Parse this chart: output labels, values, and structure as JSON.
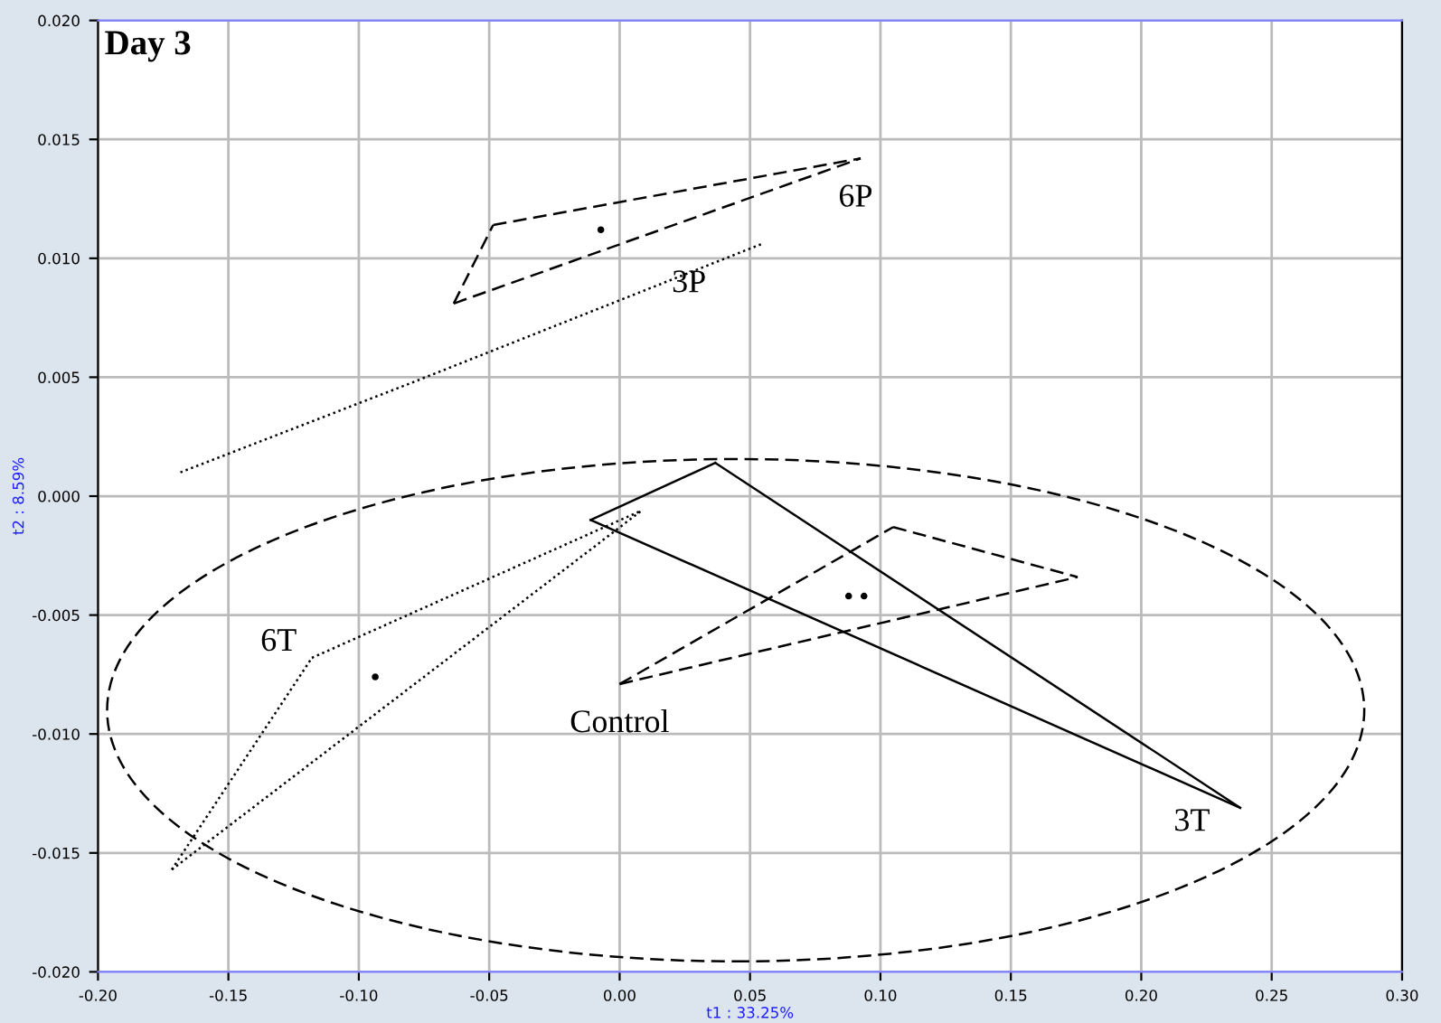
{
  "chart_data": {
    "type": "line",
    "title": "Day 3",
    "xlabel": "t1 : 33.25%",
    "ylabel": "t2 : 8.59%",
    "xlim": [
      -0.2,
      0.3
    ],
    "ylim": [
      -0.02,
      0.02
    ],
    "xticks": [
      {
        "value": -0.2,
        "label": "-0.20"
      },
      {
        "value": -0.15,
        "label": "-0.15"
      },
      {
        "value": -0.1,
        "label": "-0.10"
      },
      {
        "value": -0.05,
        "label": "-0.05"
      },
      {
        "value": 0,
        "label": "0.00"
      },
      {
        "value": 0.05,
        "label": "0.05"
      },
      {
        "value": 0.1,
        "label": "0.10"
      },
      {
        "value": 0.15,
        "label": "0.15"
      },
      {
        "value": 0.2,
        "label": "0.20"
      },
      {
        "value": 0.25,
        "label": "0.25"
      },
      {
        "value": 0.3,
        "label": "0.30"
      }
    ],
    "yticks": [
      {
        "value": -0.02,
        "label": "-0.020"
      },
      {
        "value": -0.015,
        "label": "-0.015"
      },
      {
        "value": -0.01,
        "label": "-0.010"
      },
      {
        "value": -0.005,
        "label": "-0.005"
      },
      {
        "value": 0,
        "label": "0.000"
      },
      {
        "value": 0.005,
        "label": "0.005"
      },
      {
        "value": 0.01,
        "label": "0.010"
      },
      {
        "value": 0.015,
        "label": "0.015"
      },
      {
        "value": 0.02,
        "label": "0.020"
      }
    ],
    "grid": true,
    "marker": "none",
    "series": [
      {
        "color": "#000000",
        "line_style": "dashed",
        "x": [
          -0.0636,
          -0.0485
        ],
        "values": [
          0.0081,
          0.0114
        ]
      },
      {
        "name": "6P",
        "color": "#000000",
        "line_style": "dashed",
        "x": [
          -0.0485,
          0.0924
        ],
        "values": [
          0.0114,
          0.0142
        ]
      },
      {
        "color": "#000000",
        "line_style": "dashed",
        "x": [
          -0.0636,
          0.0924
        ],
        "values": [
          0.0081,
          0.0142
        ]
      },
      {
        "name": "3P",
        "color": "#000000",
        "line_style": "dotted",
        "x": [
          -0.1684,
          -0.0813,
          0.0544
        ],
        "values": [
          0.001,
          0.0047,
          0.0106
        ]
      },
      {
        "color": "#000000",
        "line_style": "dotted",
        "x": [
          -0.1717,
          -0.118
        ],
        "values": [
          -0.0157,
          -0.0068
        ]
      },
      {
        "name": "6T",
        "color": "#000000",
        "line_style": "dotted",
        "x": [
          -0.118,
          0.0085
        ],
        "values": [
          -0.0068,
          -0.0006
        ]
      },
      {
        "color": "#000000",
        "line_style": "dotted",
        "x": [
          -0.1717,
          0.0085
        ],
        "values": [
          -0.0157,
          -0.0006
        ]
      },
      {
        "color": "#000000",
        "line_style": "solid",
        "x": [
          -0.0111,
          0.0367
        ],
        "values": [
          -0.001,
          0.0014
        ]
      },
      {
        "name": "3T",
        "color": "#000000",
        "line_style": "solid",
        "x": [
          0.0367,
          0.2379
        ],
        "values": [
          0.0014,
          -0.0131
        ]
      },
      {
        "color": "#000000",
        "line_style": "solid",
        "x": [
          -0.0111,
          0.2379
        ],
        "values": [
          -0.001,
          -0.0131
        ]
      },
      {
        "name": "Control",
        "color": "#000000",
        "line_style": "dashed",
        "x": [
          0.0,
          0.1049
        ],
        "values": [
          -0.0079,
          -0.0013
        ]
      },
      {
        "color": "#000000",
        "line_style": "dashed",
        "x": [
          0.1049,
          0.1756
        ],
        "values": [
          -0.0013,
          -0.0034
        ]
      },
      {
        "color": "#000000",
        "line_style": "dashed",
        "x": [
          0.0,
          0.1756
        ],
        "values": [
          -0.0079,
          -0.0034
        ]
      },
      {
        "type": "scatter",
        "color": "#000000",
        "marker": "circle",
        "x": [
          -0.0072,
          -0.0937,
          0.0878,
          0.0937
        ],
        "values": [
          0.0112,
          -0.0076,
          -0.0042,
          -0.0042
        ]
      }
    ]
  }
}
